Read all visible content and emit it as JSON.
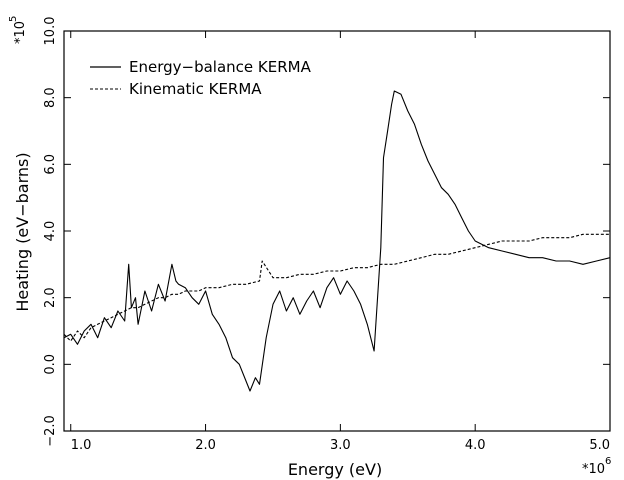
{
  "chart_data": {
    "type": "line",
    "title": "",
    "xlabel": "Energy (eV)",
    "ylabel": "Heating (eV−barns)",
    "x_multiplier": "*10",
    "x_multiplier_exp": "6",
    "y_multiplier": "*10",
    "y_multiplier_exp": "5",
    "xlim": [
      0.95,
      5.0
    ],
    "ylim": [
      -2.0,
      10.0
    ],
    "x_ticks": [
      1.0,
      2.0,
      3.0,
      4.0,
      5.0
    ],
    "x_tick_labels": [
      "1.0",
      "2.0",
      "3.0",
      "4.0",
      "5.0"
    ],
    "y_ticks": [
      -2.0,
      0.0,
      2.0,
      4.0,
      6.0,
      8.0,
      10.0
    ],
    "y_tick_labels": [
      "−2.0",
      "0.0",
      "2.0",
      "4.0",
      "6.0",
      "8.0",
      "10.0"
    ],
    "grid": false,
    "legend_position": "top-left",
    "series": [
      {
        "name": "Energy−balance KERMA",
        "style": "solid",
        "color": "#000000",
        "x": [
          0.95,
          1.0,
          1.05,
          1.1,
          1.15,
          1.2,
          1.25,
          1.3,
          1.35,
          1.4,
          1.43,
          1.45,
          1.48,
          1.5,
          1.55,
          1.6,
          1.65,
          1.7,
          1.75,
          1.78,
          1.8,
          1.85,
          1.9,
          1.95,
          2.0,
          2.05,
          2.1,
          2.15,
          2.2,
          2.25,
          2.3,
          2.33,
          2.37,
          2.4,
          2.45,
          2.5,
          2.55,
          2.6,
          2.65,
          2.7,
          2.75,
          2.8,
          2.85,
          2.9,
          2.95,
          3.0,
          3.05,
          3.1,
          3.15,
          3.2,
          3.25,
          3.3,
          3.32,
          3.35,
          3.38,
          3.4,
          3.45,
          3.5,
          3.55,
          3.6,
          3.65,
          3.7,
          3.75,
          3.8,
          3.85,
          3.9,
          3.95,
          4.0,
          4.1,
          4.2,
          4.3,
          4.4,
          4.5,
          4.6,
          4.7,
          4.8,
          4.9,
          5.0
        ],
        "y": [
          0.8,
          0.9,
          0.6,
          1.0,
          1.2,
          0.8,
          1.4,
          1.1,
          1.6,
          1.3,
          3.0,
          1.7,
          2.0,
          1.2,
          2.2,
          1.6,
          2.4,
          1.9,
          3.0,
          2.5,
          2.4,
          2.3,
          2.0,
          1.8,
          2.2,
          1.5,
          1.2,
          0.8,
          0.2,
          0.0,
          -0.5,
          -0.8,
          -0.4,
          -0.6,
          0.8,
          1.8,
          2.2,
          1.6,
          2.0,
          1.5,
          1.9,
          2.2,
          1.7,
          2.3,
          2.6,
          2.1,
          2.5,
          2.2,
          1.8,
          1.2,
          0.4,
          3.5,
          6.2,
          7.0,
          7.8,
          8.2,
          8.1,
          7.6,
          7.2,
          6.6,
          6.1,
          5.7,
          5.3,
          5.1,
          4.8,
          4.4,
          4.0,
          3.7,
          3.5,
          3.4,
          3.3,
          3.2,
          3.2,
          3.1,
          3.1,
          3.0,
          3.1,
          3.2
        ]
      },
      {
        "name": "Kinematic KERMA",
        "style": "dashed",
        "color": "#000000",
        "x": [
          0.95,
          1.0,
          1.05,
          1.1,
          1.15,
          1.2,
          1.25,
          1.3,
          1.35,
          1.4,
          1.45,
          1.5,
          1.55,
          1.6,
          1.65,
          1.7,
          1.75,
          1.8,
          1.85,
          1.9,
          1.95,
          2.0,
          2.1,
          2.2,
          2.3,
          2.4,
          2.42,
          2.5,
          2.6,
          2.7,
          2.8,
          2.9,
          3.0,
          3.1,
          3.2,
          3.3,
          3.4,
          3.5,
          3.6,
          3.7,
          3.8,
          3.9,
          4.0,
          4.1,
          4.2,
          4.3,
          4.4,
          4.5,
          4.6,
          4.7,
          4.8,
          4.9,
          5.0
        ],
        "y": [
          0.9,
          0.7,
          1.0,
          0.8,
          1.1,
          1.2,
          1.3,
          1.4,
          1.5,
          1.6,
          1.7,
          1.7,
          1.8,
          1.9,
          2.0,
          2.0,
          2.1,
          2.1,
          2.2,
          2.2,
          2.2,
          2.3,
          2.3,
          2.4,
          2.4,
          2.5,
          3.1,
          2.6,
          2.6,
          2.7,
          2.7,
          2.8,
          2.8,
          2.9,
          2.9,
          3.0,
          3.0,
          3.1,
          3.2,
          3.3,
          3.3,
          3.4,
          3.5,
          3.6,
          3.7,
          3.7,
          3.7,
          3.8,
          3.8,
          3.8,
          3.9,
          3.9,
          3.9
        ]
      }
    ]
  }
}
